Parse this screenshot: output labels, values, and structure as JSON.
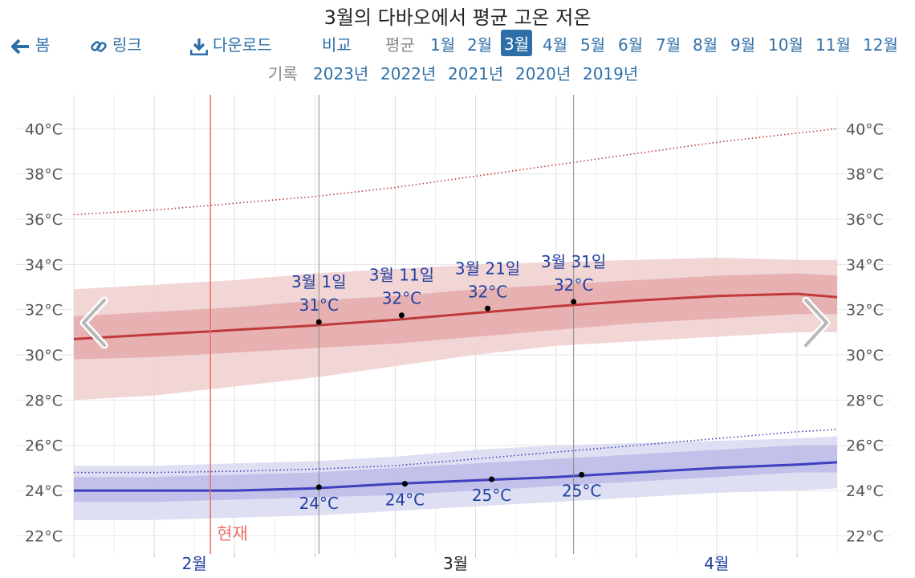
{
  "title": "3월의 다바오에서 평균 고온 저온",
  "nav": {
    "home": "봄",
    "link": "링크",
    "download": "다운로드",
    "compare": "비교",
    "average": "평균",
    "months": [
      "1월",
      "2월",
      "3월",
      "4월",
      "5월",
      "6월",
      "7월",
      "8월",
      "9월",
      "10월",
      "11월",
      "12월"
    ],
    "active_month": "3월"
  },
  "history": {
    "label": "기록",
    "years": [
      "2023년",
      "2022년",
      "2021년",
      "2020년",
      "2019년"
    ]
  },
  "colors": {
    "high": "#c0393b",
    "high_band_inner": "#e3a8a9",
    "high_band_outer": "#f1d1d2",
    "low": "#3f3fbf",
    "low_band_inner": "#b9b9e6",
    "low_band_outer": "#dcdcf3",
    "now": "#f06a6a",
    "label": "#1f3fa0",
    "nav": "#2f6fa8"
  },
  "chart_data": {
    "type": "line",
    "title": "3월의 다바오에서 평균 고온 저온",
    "x_axis": {
      "labels": [
        "2월",
        "3월",
        "4월"
      ]
    },
    "y_axis": {
      "ticks": [
        22,
        24,
        26,
        28,
        30,
        32,
        34,
        36,
        38,
        40
      ],
      "unit": "°C",
      "ylim": [
        21.2,
        41.5
      ]
    },
    "now_label": "현재",
    "series": [
      {
        "key": "high",
        "x": [
          0,
          10,
          20,
          30,
          40,
          50,
          60,
          70,
          80,
          90,
          95
        ],
        "y": [
          30.7,
          30.9,
          31.1,
          31.3,
          31.55,
          31.85,
          32.15,
          32.4,
          32.6,
          32.7,
          32.55
        ],
        "band_inner": [
          [
            29.8,
            31.7
          ],
          [
            29.9,
            31.9
          ],
          [
            30.1,
            32.1
          ],
          [
            30.3,
            32.4
          ],
          [
            30.5,
            32.6
          ],
          [
            30.8,
            32.9
          ],
          [
            31.1,
            33.1
          ],
          [
            31.4,
            33.3
          ],
          [
            31.6,
            33.5
          ],
          [
            31.8,
            33.6
          ],
          [
            31.8,
            33.5
          ]
        ],
        "band_outer": [
          [
            28.0,
            32.9
          ],
          [
            28.2,
            33.1
          ],
          [
            28.6,
            33.3
          ],
          [
            29.0,
            33.6
          ],
          [
            29.5,
            33.8
          ],
          [
            30.0,
            34.0
          ],
          [
            30.4,
            34.1
          ],
          [
            30.6,
            34.2
          ],
          [
            30.8,
            34.3
          ],
          [
            31.0,
            34.2
          ],
          [
            31.0,
            34.2
          ]
        ],
        "record": [
          36.2,
          36.4,
          36.7,
          37.0,
          37.4,
          37.9,
          38.4,
          38.9,
          39.4,
          39.8,
          40.0
        ]
      },
      {
        "key": "low",
        "x": [
          0,
          10,
          20,
          30,
          40,
          50,
          60,
          70,
          80,
          90,
          95
        ],
        "y": [
          24.0,
          24.0,
          24.0,
          24.1,
          24.3,
          24.45,
          24.6,
          24.8,
          25.0,
          25.15,
          25.25
        ],
        "band_inner": [
          [
            23.5,
            24.6
          ],
          [
            23.5,
            24.6
          ],
          [
            23.6,
            24.7
          ],
          [
            23.7,
            24.8
          ],
          [
            23.8,
            25.0
          ],
          [
            24.0,
            25.2
          ],
          [
            24.2,
            25.4
          ],
          [
            24.4,
            25.6
          ],
          [
            24.6,
            25.8
          ],
          [
            24.8,
            26.0
          ],
          [
            24.8,
            26.0
          ]
        ],
        "band_outer": [
          [
            22.7,
            25.1
          ],
          [
            22.7,
            25.1
          ],
          [
            22.8,
            25.2
          ],
          [
            22.9,
            25.3
          ],
          [
            23.1,
            25.5
          ],
          [
            23.3,
            25.8
          ],
          [
            23.5,
            26.0
          ],
          [
            23.7,
            26.1
          ],
          [
            23.9,
            26.2
          ],
          [
            24.0,
            26.3
          ],
          [
            24.1,
            26.4
          ]
        ],
        "record": [
          24.8,
          24.8,
          24.85,
          24.95,
          25.1,
          25.4,
          25.7,
          26.0,
          26.3,
          26.6,
          26.7
        ]
      }
    ],
    "annotations": {
      "high": [
        {
          "x": 30.5,
          "y": 31.45,
          "date": "3월 1일",
          "value": "31°C"
        },
        {
          "x": 40.8,
          "y": 31.75,
          "date": "3월 11일",
          "value": "32°C"
        },
        {
          "x": 51.5,
          "y": 32.05,
          "date": "3월 21일",
          "value": "32°C"
        },
        {
          "x": 62.2,
          "y": 32.35,
          "date": "3월 31일",
          "value": "32°C"
        }
      ],
      "low": [
        {
          "x": 30.5,
          "y": 24.15,
          "value": "24°C"
        },
        {
          "x": 41.2,
          "y": 24.3,
          "value": "24°C"
        },
        {
          "x": 52.0,
          "y": 24.5,
          "value": "25°C"
        },
        {
          "x": 63.2,
          "y": 24.7,
          "value": "25°C"
        }
      ]
    }
  }
}
